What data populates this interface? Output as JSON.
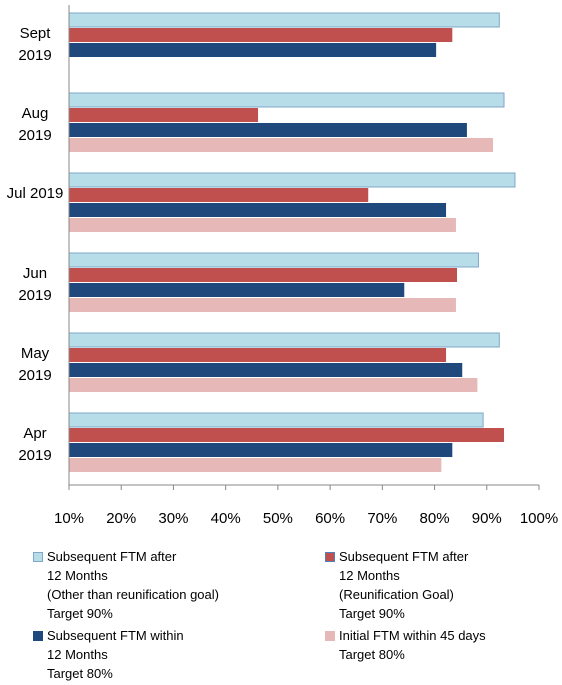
{
  "chart_data": {
    "type": "bar",
    "orientation": "horizontal",
    "categories": [
      "Sept 2019",
      "Aug 2019",
      "Jul 2019",
      "Jun 2019",
      "May 2019",
      "Apr 2019"
    ],
    "series": [
      {
        "name": "Subsequent FTM after\n12 Months\n(Other than reunification goal)\nTarget 90%",
        "color": "#b7dde8",
        "values": [
          92.4,
          93.3,
          95.4,
          88.4,
          92.4,
          89.3
        ]
      },
      {
        "name": "Subsequent FTM after\n12 Months\n(Reunification Goal)\nTarget 90%",
        "color": "#c0504d",
        "values": [
          83.4,
          46.2,
          67.3,
          84.3,
          82.2,
          93.3
        ]
      },
      {
        "name": "Subsequent FTM within\n12 Months\nTarget 80%",
        "color": "#1f497d",
        "values": [
          80.3,
          86.2,
          82.2,
          74.2,
          85.3,
          83.4
        ]
      },
      {
        "name": "Initial FTM within 45 days\nTarget 80%",
        "color": "#e6b9b8",
        "values": [
          null,
          91.2,
          84.1,
          84.1,
          88.2,
          81.3
        ]
      }
    ],
    "xlim": [
      10,
      100
    ],
    "xticks": [
      {
        "value": 10,
        "label": "10%"
      },
      {
        "value": 20,
        "label": "20%"
      },
      {
        "value": 30,
        "label": "30%"
      },
      {
        "value": 40,
        "label": "40%"
      },
      {
        "value": 50,
        "label": "50%"
      },
      {
        "value": 60,
        "label": "60%"
      },
      {
        "value": 70,
        "label": "70%"
      },
      {
        "value": 80,
        "label": "80%"
      },
      {
        "value": 90,
        "label": "90%"
      },
      {
        "value": 100,
        "label": "100%"
      }
    ],
    "grid": false
  }
}
